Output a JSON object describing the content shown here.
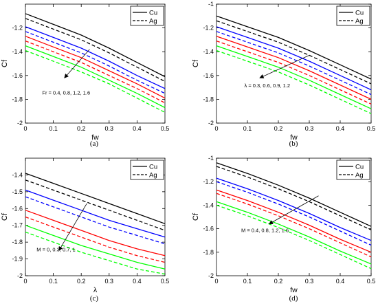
{
  "colors": {
    "black": "#000000",
    "blue": "#0000ff",
    "red": "#ff0000",
    "green": "#00ff00"
  },
  "chart_data": [
    {
      "type": "line",
      "panel_label": "(a)",
      "xlabel": "fw",
      "ylabel": "Cf",
      "xlim": [
        0,
        0.5
      ],
      "ylim": [
        -2,
        -1
      ],
      "xticks": [
        "0",
        "0.1",
        "0.2",
        "0.3",
        "0.4",
        "0.5"
      ],
      "yticks": [
        "-1.2",
        "-1.4",
        "-1.6",
        "-1.8",
        "-2"
      ],
      "annotation": "Fr = 0.4, 0.8, 1.2, 1.6",
      "legend": {
        "position": "top-right",
        "entries": [
          "Cu",
          "Ag"
        ]
      },
      "x": [
        0,
        0.1,
        0.2,
        0.3,
        0.4,
        0.5
      ],
      "series": [
        {
          "legend": "Cu",
          "color": "black",
          "dash": "solid",
          "values": [
            -1.08,
            -1.17,
            -1.26,
            -1.37,
            -1.49,
            -1.61
          ]
        },
        {
          "legend": "Ag",
          "color": "black",
          "dash": "dashed",
          "values": [
            -1.12,
            -1.21,
            -1.3,
            -1.41,
            -1.53,
            -1.65
          ]
        },
        {
          "color": "blue",
          "dash": "solid",
          "values": [
            -1.19,
            -1.28,
            -1.37,
            -1.48,
            -1.6,
            -1.71
          ]
        },
        {
          "color": "blue",
          "dash": "dashed",
          "values": [
            -1.23,
            -1.32,
            -1.41,
            -1.52,
            -1.64,
            -1.75
          ]
        },
        {
          "color": "red",
          "dash": "solid",
          "values": [
            -1.27,
            -1.36,
            -1.45,
            -1.56,
            -1.67,
            -1.79
          ]
        },
        {
          "color": "red",
          "dash": "dashed",
          "values": [
            -1.31,
            -1.4,
            -1.49,
            -1.6,
            -1.71,
            -1.83
          ]
        },
        {
          "color": "green",
          "dash": "solid",
          "values": [
            -1.35,
            -1.44,
            -1.53,
            -1.64,
            -1.75,
            -1.87
          ]
        },
        {
          "color": "green",
          "dash": "dashed",
          "values": [
            -1.39,
            -1.48,
            -1.57,
            -1.67,
            -1.79,
            -1.91
          ]
        }
      ]
    },
    {
      "type": "line",
      "panel_label": "(b)",
      "xlabel": "fw",
      "ylabel": "Cf",
      "xlim": [
        0,
        0.5
      ],
      "ylim": [
        -2,
        -1
      ],
      "xticks": [
        "0",
        "0.1",
        "0.2",
        "0.3",
        "0.4",
        "0.5"
      ],
      "yticks": [
        "-1",
        "-1.2",
        "-1.4",
        "-1.6",
        "-1.8",
        "-2"
      ],
      "annotation": "λ = 0.3, 0.6, 0.9, 1.2",
      "legend": {
        "position": "top-right",
        "entries": [
          "Cu",
          "Ag"
        ]
      },
      "x": [
        0,
        0.1,
        0.2,
        0.3,
        0.4,
        0.5
      ],
      "series": [
        {
          "legend": "Cu",
          "color": "black",
          "dash": "solid",
          "values": [
            -1.1,
            -1.19,
            -1.28,
            -1.39,
            -1.51,
            -1.63
          ]
        },
        {
          "legend": "Ag",
          "color": "black",
          "dash": "dashed",
          "values": [
            -1.14,
            -1.23,
            -1.32,
            -1.43,
            -1.55,
            -1.67
          ]
        },
        {
          "color": "blue",
          "dash": "solid",
          "values": [
            -1.19,
            -1.28,
            -1.37,
            -1.48,
            -1.6,
            -1.72
          ]
        },
        {
          "color": "blue",
          "dash": "dashed",
          "values": [
            -1.23,
            -1.32,
            -1.41,
            -1.52,
            -1.64,
            -1.76
          ]
        },
        {
          "color": "red",
          "dash": "solid",
          "values": [
            -1.27,
            -1.36,
            -1.45,
            -1.56,
            -1.68,
            -1.8
          ]
        },
        {
          "color": "red",
          "dash": "dashed",
          "values": [
            -1.31,
            -1.4,
            -1.49,
            -1.6,
            -1.72,
            -1.84
          ]
        },
        {
          "color": "green",
          "dash": "solid",
          "values": [
            -1.35,
            -1.44,
            -1.53,
            -1.64,
            -1.76,
            -1.88
          ]
        },
        {
          "color": "green",
          "dash": "dashed",
          "values": [
            -1.39,
            -1.48,
            -1.57,
            -1.68,
            -1.8,
            -1.92
          ]
        }
      ]
    },
    {
      "type": "line",
      "panel_label": "(c)",
      "xlabel": "λ",
      "ylabel": "Cf",
      "xlim": [
        0,
        0.5
      ],
      "ylim": [
        -2,
        -1.3
      ],
      "xticks": [
        "0",
        "0.1",
        "0.2",
        "0.3",
        "0.4",
        "0.5"
      ],
      "yticks": [
        "-1.4",
        "-1.5",
        "-1.6",
        "-1.7",
        "-1.8",
        "-1.9",
        "-2"
      ],
      "annotation": "M = 0, 0.3, 0.7, 1",
      "legend": {
        "position": "top-right",
        "entries": [
          "Cu",
          "Ag"
        ]
      },
      "x": [
        0,
        0.1,
        0.2,
        0.3,
        0.4,
        0.5
      ],
      "series": [
        {
          "legend": "Cu",
          "color": "black",
          "dash": "solid",
          "values": [
            -1.39,
            -1.45,
            -1.51,
            -1.57,
            -1.63,
            -1.69
          ]
        },
        {
          "legend": "Ag",
          "color": "black",
          "dash": "dashed",
          "values": [
            -1.43,
            -1.49,
            -1.55,
            -1.61,
            -1.67,
            -1.73
          ]
        },
        {
          "color": "blue",
          "dash": "solid",
          "values": [
            -1.49,
            -1.55,
            -1.61,
            -1.67,
            -1.72,
            -1.77
          ]
        },
        {
          "color": "blue",
          "dash": "dashed",
          "values": [
            -1.53,
            -1.59,
            -1.65,
            -1.71,
            -1.76,
            -1.81
          ]
        },
        {
          "color": "red",
          "dash": "solid",
          "values": [
            -1.61,
            -1.67,
            -1.73,
            -1.79,
            -1.84,
            -1.88
          ]
        },
        {
          "color": "red",
          "dash": "dashed",
          "values": [
            -1.65,
            -1.71,
            -1.77,
            -1.83,
            -1.88,
            -1.92
          ]
        },
        {
          "color": "green",
          "dash": "solid",
          "values": [
            -1.7,
            -1.76,
            -1.82,
            -1.87,
            -1.92,
            -1.96
          ]
        },
        {
          "color": "green",
          "dash": "dashed",
          "values": [
            -1.74,
            -1.8,
            -1.86,
            -1.91,
            -1.96,
            -1.99
          ]
        }
      ]
    },
    {
      "type": "line",
      "panel_label": "(d)",
      "xlabel": "fw",
      "ylabel": "Cf",
      "xlim": [
        0,
        0.5
      ],
      "ylim": [
        -2,
        -1
      ],
      "xticks": [
        "0",
        "0.1",
        "0.2",
        "0.3",
        "0.4",
        "0.5"
      ],
      "yticks": [
        "-1",
        "-1.2",
        "-1.4",
        "-1.6",
        "-1.8",
        "-2"
      ],
      "annotation": "M = 0.4, 0.8, 1.2, 1.6",
      "legend": {
        "position": "top-right",
        "entries": [
          "Cu",
          "Ag"
        ]
      },
      "x": [
        0,
        0.1,
        0.2,
        0.3,
        0.4,
        0.5
      ],
      "series": [
        {
          "legend": "Cu",
          "color": "black",
          "dash": "solid",
          "values": [
            -1.04,
            -1.13,
            -1.23,
            -1.34,
            -1.46,
            -1.58
          ]
        },
        {
          "legend": "Ag",
          "color": "black",
          "dash": "dashed",
          "values": [
            -1.07,
            -1.16,
            -1.26,
            -1.37,
            -1.49,
            -1.61
          ]
        },
        {
          "color": "blue",
          "dash": "solid",
          "values": [
            -1.17,
            -1.26,
            -1.36,
            -1.47,
            -1.59,
            -1.7
          ]
        },
        {
          "color": "blue",
          "dash": "dashed",
          "values": [
            -1.2,
            -1.29,
            -1.39,
            -1.5,
            -1.62,
            -1.74
          ]
        },
        {
          "color": "red",
          "dash": "solid",
          "values": [
            -1.27,
            -1.36,
            -1.46,
            -1.57,
            -1.69,
            -1.8
          ]
        },
        {
          "color": "red",
          "dash": "dashed",
          "values": [
            -1.3,
            -1.39,
            -1.49,
            -1.6,
            -1.72,
            -1.84
          ]
        },
        {
          "color": "green",
          "dash": "solid",
          "values": [
            -1.37,
            -1.46,
            -1.56,
            -1.67,
            -1.79,
            -1.9
          ]
        },
        {
          "color": "green",
          "dash": "dashed",
          "values": [
            -1.4,
            -1.49,
            -1.59,
            -1.7,
            -1.82,
            -1.94
          ]
        }
      ]
    }
  ]
}
